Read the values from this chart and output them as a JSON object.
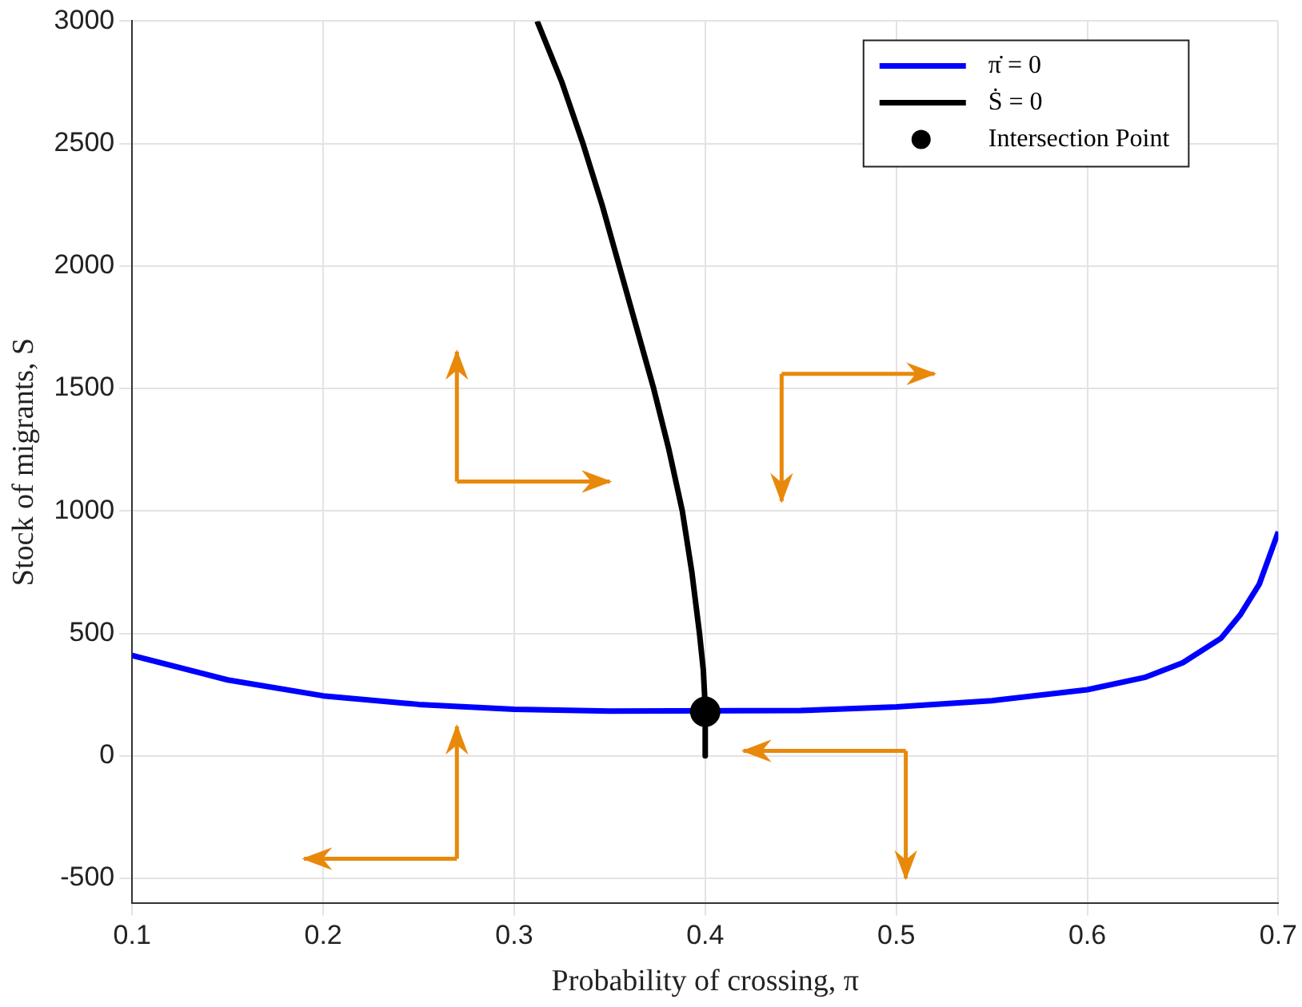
{
  "chart_data": {
    "type": "line",
    "xlabel": "Probability of crossing, π",
    "ylabel": "Stock of migrants, S",
    "xlim": [
      0.1,
      0.7
    ],
    "ylim": [
      -600,
      3000
    ],
    "xticks": [
      0.1,
      0.2,
      0.3,
      0.4,
      0.5,
      0.6,
      0.7
    ],
    "yticks": [
      -500,
      0,
      500,
      1000,
      1500,
      2000,
      2500,
      3000
    ],
    "grid": true,
    "legend": "top right",
    "line_style": "solid",
    "series": [
      {
        "name": "π̇ = 0",
        "color": "#0000ff",
        "marker": "none",
        "x": [
          0.1,
          0.15,
          0.2,
          0.25,
          0.3,
          0.35,
          0.45,
          0.5,
          0.55,
          0.6,
          0.63,
          0.65,
          0.67,
          0.68,
          0.69,
          0.7
        ],
        "values": [
          410,
          310,
          245,
          210,
          190,
          183,
          185,
          200,
          225,
          270,
          320,
          380,
          480,
          575,
          700,
          915
        ]
      },
      {
        "name": "Ṡ = 0",
        "color": "#000000",
        "marker": "none",
        "x": [
          0.312,
          0.325,
          0.336,
          0.346,
          0.355,
          0.364,
          0.373,
          0.381,
          0.388,
          0.393,
          0.397,
          0.399,
          0.4,
          0.4
        ],
        "values": [
          3000,
          2750,
          2500,
          2250,
          2000,
          1750,
          1500,
          1250,
          1000,
          750,
          500,
          350,
          200,
          0
        ]
      },
      {
        "name": "Intersection Point",
        "color": "#000000",
        "type": "scatter",
        "marker": "circle",
        "x": [
          0.4
        ],
        "values": [
          180
        ]
      }
    ]
  }
}
